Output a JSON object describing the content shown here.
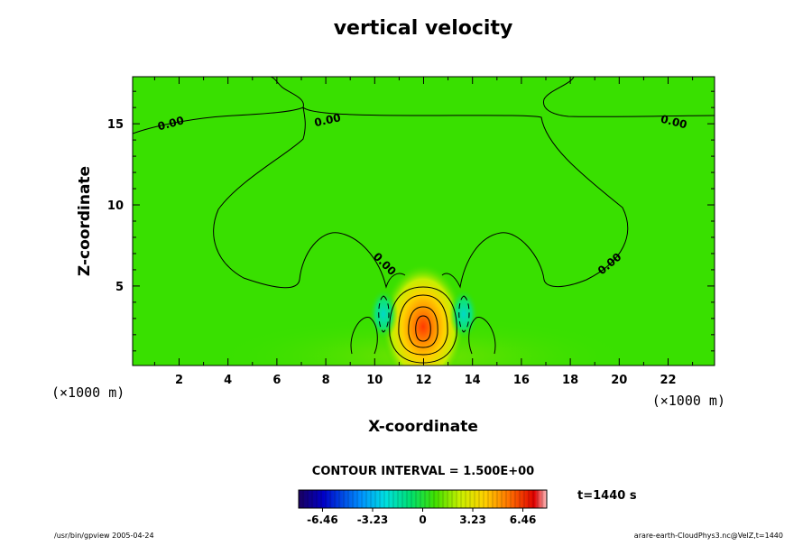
{
  "chart_data": {
    "type": "heatmap",
    "title": "vertical velocity",
    "xlabel": "X-coordinate",
    "ylabel": "Z-coordinate",
    "x_unit": "(×1000 m)",
    "y_unit": "(×1000 m)",
    "xlim": [
      0.1,
      23.9
    ],
    "ylim": [
      0.1,
      17.9
    ],
    "x_ticks": [
      "2",
      "4",
      "6",
      "8",
      "10",
      "12",
      "14",
      "16",
      "18",
      "20",
      "22"
    ],
    "x_tick_values": [
      2,
      4,
      6,
      8,
      10,
      12,
      14,
      16,
      18,
      20,
      22
    ],
    "y_ticks": [
      "5",
      "10",
      "15"
    ],
    "y_tick_values": [
      5,
      10,
      15
    ],
    "contour_interval_text": "CONTOUR INTERVAL = 1.500E+00",
    "time_text": "t=1440 s",
    "contour_labels": [
      {
        "text": "0.00",
        "x": 1.7,
        "z": 14.8
      },
      {
        "text": "0.00",
        "x": 8.1,
        "z": 15.0
      },
      {
        "text": "0.00",
        "x": 22.2,
        "z": 14.9
      },
      {
        "text": "0.00",
        "x": 10.3,
        "z": 6.2
      },
      {
        "text": "0.00",
        "x": 19.7,
        "z": 6.2
      }
    ],
    "colorbar": {
      "min": -8.0,
      "max": 8.0,
      "ticks": [
        -6.46,
        -3.23,
        0,
        3.23,
        6.46
      ],
      "tick_labels": [
        "-6.46",
        "-3.23",
        "0",
        "3.23",
        "6.46"
      ],
      "colormap": "rainbow (blue to red)"
    },
    "features": [
      {
        "kind": "updraft-core",
        "x": 12.0,
        "z": 2.4,
        "value": 6.5
      },
      {
        "kind": "downdraft",
        "x": 10.4,
        "z": 3.1,
        "value": -2.5
      },
      {
        "kind": "downdraft",
        "x": 13.6,
        "z": 3.1,
        "value": -2.5
      }
    ]
  },
  "footer": {
    "left": "/usr/bin/gpview 2005-04-24",
    "right": "arare-earth-CloudPhys3.nc@VelZ,t=1440"
  }
}
